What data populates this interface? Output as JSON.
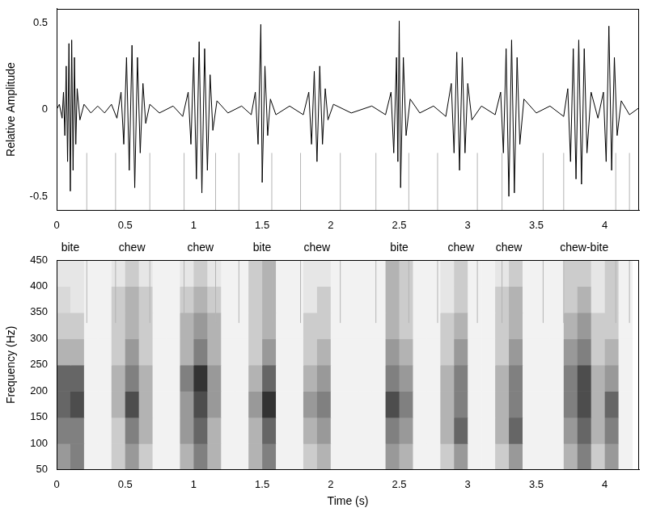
{
  "chart_data": [
    {
      "type": "line",
      "y_label": "Relative Amplitude",
      "color": "#000000",
      "grid": false,
      "xlim": [
        0,
        4.25
      ],
      "ylim": [
        -0.58,
        0.58
      ],
      "xticks": [
        0,
        0.5,
        1,
        1.5,
        2,
        2.5,
        3,
        3.5,
        4
      ],
      "yticks": [
        -0.5,
        0,
        0.5
      ],
      "x": [
        0,
        0.02,
        0.04,
        0.05,
        0.06,
        0.07,
        0.08,
        0.09,
        0.1,
        0.11,
        0.12,
        0.13,
        0.14,
        0.15,
        0.17,
        0.2,
        0.25,
        0.3,
        0.35,
        0.4,
        0.44,
        0.47,
        0.49,
        0.51,
        0.53,
        0.55,
        0.57,
        0.59,
        0.61,
        0.63,
        0.65,
        0.68,
        0.75,
        0.85,
        0.92,
        0.96,
        0.98,
        1.0,
        1.02,
        1.04,
        1.06,
        1.08,
        1.1,
        1.12,
        1.14,
        1.17,
        1.25,
        1.35,
        1.42,
        1.45,
        1.47,
        1.49,
        1.5,
        1.52,
        1.54,
        1.56,
        1.6,
        1.7,
        1.8,
        1.84,
        1.86,
        1.88,
        1.9,
        1.92,
        1.94,
        1.96,
        1.98,
        2.02,
        2.15,
        2.3,
        2.4,
        2.44,
        2.46,
        2.48,
        2.49,
        2.5,
        2.51,
        2.53,
        2.55,
        2.58,
        2.65,
        2.75,
        2.84,
        2.88,
        2.9,
        2.92,
        2.94,
        2.96,
        2.98,
        3.0,
        3.03,
        3.1,
        3.2,
        3.24,
        3.26,
        3.28,
        3.3,
        3.32,
        3.34,
        3.36,
        3.38,
        3.41,
        3.5,
        3.6,
        3.7,
        3.73,
        3.75,
        3.77,
        3.79,
        3.81,
        3.83,
        3.85,
        3.87,
        3.9,
        3.95,
        3.99,
        4.01,
        4.03,
        4.05,
        4.07,
        4.09,
        4.12,
        4.18,
        4.25
      ],
      "values": [
        0,
        0.03,
        -0.05,
        0.1,
        -0.15,
        0.25,
        -0.3,
        0.38,
        -0.47,
        0.4,
        -0.35,
        0.3,
        -0.2,
        0.12,
        -0.06,
        0.03,
        -0.02,
        0.02,
        -0.02,
        0.03,
        -0.05,
        0.1,
        -0.2,
        0.3,
        -0.35,
        0.37,
        -0.45,
        0.3,
        -0.25,
        0.15,
        -0.08,
        0.03,
        -0.02,
        0.02,
        -0.04,
        0.1,
        -0.2,
        0.3,
        -0.4,
        0.39,
        -0.48,
        0.35,
        -0.35,
        0.2,
        -0.12,
        0.05,
        -0.02,
        0.02,
        -0.03,
        0.1,
        -0.2,
        0.49,
        -0.42,
        0.25,
        -0.15,
        0.06,
        -0.03,
        0.02,
        -0.03,
        0.1,
        -0.2,
        0.22,
        -0.3,
        0.25,
        -0.2,
        0.12,
        -0.06,
        0.03,
        -0.02,
        0.02,
        -0.03,
        0.1,
        -0.25,
        0.3,
        -0.3,
        0.51,
        -0.45,
        0.3,
        -0.15,
        0.06,
        -0.02,
        0.02,
        -0.04,
        0.15,
        -0.25,
        0.33,
        -0.35,
        0.3,
        -0.25,
        0.15,
        -0.06,
        0.02,
        -0.03,
        0.1,
        -0.25,
        0.35,
        -0.5,
        0.4,
        -0.48,
        0.3,
        -0.2,
        0.06,
        -0.02,
        0.02,
        -0.04,
        0.12,
        -0.3,
        0.35,
        -0.4,
        0.4,
        -0.43,
        0.35,
        -0.25,
        0.1,
        -0.05,
        0.1,
        -0.3,
        0.48,
        -0.35,
        0.3,
        -0.15,
        0.05,
        -0.03,
        0.01
      ],
      "segment_marks": [
        0.0,
        0.22,
        0.43,
        0.68,
        0.93,
        1.16,
        1.33,
        1.57,
        1.78,
        2.07,
        2.33,
        2.57,
        2.78,
        3.07,
        3.25,
        3.55,
        3.7,
        4.08,
        4.18
      ],
      "segment_mark_span": [
        -0.58,
        -0.25
      ]
    },
    {
      "type": "heatmap",
      "x_label": "Time (s)",
      "y_label": "Frequency (Hz)",
      "color": "#000000",
      "grid": false,
      "xlim": [
        0,
        4.25
      ],
      "ylim": [
        50,
        450
      ],
      "xticks": [
        0,
        0.5,
        1,
        1.5,
        2,
        2.5,
        3,
        3.5,
        4
      ],
      "yticks": [
        50,
        100,
        150,
        200,
        250,
        300,
        350,
        400,
        450
      ],
      "annotations": [
        {
          "text": "bite",
          "x": 0.1
        },
        {
          "text": "chew",
          "x": 0.55
        },
        {
          "text": "chew",
          "x": 1.05
        },
        {
          "text": "bite",
          "x": 1.5
        },
        {
          "text": "chew",
          "x": 1.9
        },
        {
          "text": "bite",
          "x": 2.5
        },
        {
          "text": "chew",
          "x": 2.95
        },
        {
          "text": "chew",
          "x": 3.3
        },
        {
          "text": "chew-bite",
          "x": 3.85
        }
      ],
      "x_edges": [
        0,
        0.1,
        0.2,
        0.3,
        0.4,
        0.5,
        0.6,
        0.7,
        0.8,
        0.9,
        1.0,
        1.1,
        1.2,
        1.3,
        1.4,
        1.5,
        1.6,
        1.7,
        1.8,
        1.9,
        2.0,
        2.1,
        2.2,
        2.3,
        2.4,
        2.5,
        2.6,
        2.7,
        2.8,
        2.9,
        3.0,
        3.1,
        3.2,
        3.3,
        3.4,
        3.5,
        3.6,
        3.7,
        3.8,
        3.9,
        4.0,
        4.1,
        4.2
      ],
      "y_edges": [
        50,
        100,
        150,
        200,
        250,
        300,
        350,
        400,
        450
      ],
      "zlim": [
        0,
        1
      ],
      "cells": [
        [
          0.4,
          0.5,
          0.05,
          0.05,
          0.2,
          0.4,
          0.2,
          0.05,
          0.05,
          0.3,
          0.5,
          0.3,
          0.05,
          0.05,
          0.3,
          0.5,
          0.05,
          0.05,
          0.2,
          0.3,
          0.05,
          0.05,
          0.05,
          0.05,
          0.4,
          0.3,
          0.05,
          0.05,
          0.2,
          0.4,
          0.05,
          0.05,
          0.2,
          0.4,
          0.05,
          0.05,
          0.05,
          0.3,
          0.5,
          0.2,
          0.4,
          0.05
        ],
        [
          0.5,
          0.5,
          0.05,
          0.05,
          0.2,
          0.5,
          0.3,
          0.05,
          0.05,
          0.4,
          0.6,
          0.3,
          0.05,
          0.05,
          0.3,
          0.6,
          0.05,
          0.05,
          0.3,
          0.4,
          0.05,
          0.05,
          0.05,
          0.05,
          0.5,
          0.4,
          0.05,
          0.05,
          0.3,
          0.6,
          0.05,
          0.05,
          0.3,
          0.6,
          0.05,
          0.05,
          0.05,
          0.4,
          0.6,
          0.3,
          0.5,
          0.05
        ],
        [
          0.6,
          0.7,
          0.05,
          0.05,
          0.3,
          0.7,
          0.3,
          0.05,
          0.05,
          0.4,
          0.7,
          0.4,
          0.05,
          0.05,
          0.4,
          0.8,
          0.05,
          0.05,
          0.4,
          0.5,
          0.05,
          0.05,
          0.05,
          0.05,
          0.7,
          0.5,
          0.05,
          0.05,
          0.3,
          0.5,
          0.05,
          0.05,
          0.3,
          0.5,
          0.05,
          0.05,
          0.05,
          0.5,
          0.7,
          0.3,
          0.6,
          0.05
        ],
        [
          0.6,
          0.6,
          0.05,
          0.05,
          0.3,
          0.5,
          0.3,
          0.05,
          0.05,
          0.5,
          0.8,
          0.4,
          0.05,
          0.05,
          0.3,
          0.6,
          0.05,
          0.05,
          0.3,
          0.4,
          0.05,
          0.05,
          0.05,
          0.05,
          0.5,
          0.4,
          0.05,
          0.05,
          0.3,
          0.5,
          0.05,
          0.05,
          0.3,
          0.5,
          0.05,
          0.05,
          0.05,
          0.5,
          0.7,
          0.3,
          0.4,
          0.05
        ],
        [
          0.3,
          0.3,
          0.05,
          0.05,
          0.2,
          0.4,
          0.2,
          0.05,
          0.05,
          0.3,
          0.5,
          0.3,
          0.05,
          0.05,
          0.2,
          0.4,
          0.05,
          0.05,
          0.2,
          0.3,
          0.05,
          0.05,
          0.05,
          0.05,
          0.4,
          0.3,
          0.05,
          0.05,
          0.2,
          0.4,
          0.05,
          0.05,
          0.2,
          0.4,
          0.05,
          0.05,
          0.05,
          0.4,
          0.5,
          0.2,
          0.3,
          0.05
        ],
        [
          0.2,
          0.2,
          0.05,
          0.05,
          0.2,
          0.3,
          0.2,
          0.05,
          0.05,
          0.3,
          0.4,
          0.3,
          0.05,
          0.05,
          0.2,
          0.3,
          0.05,
          0.05,
          0.2,
          0.2,
          0.05,
          0.05,
          0.05,
          0.05,
          0.3,
          0.2,
          0.05,
          0.05,
          0.2,
          0.3,
          0.05,
          0.05,
          0.2,
          0.3,
          0.05,
          0.05,
          0.05,
          0.3,
          0.4,
          0.2,
          0.2,
          0.05
        ],
        [
          0.15,
          0.1,
          0.05,
          0.05,
          0.2,
          0.3,
          0.2,
          0.05,
          0.05,
          0.2,
          0.3,
          0.2,
          0.05,
          0.05,
          0.2,
          0.3,
          0.05,
          0.05,
          0.1,
          0.2,
          0.05,
          0.05,
          0.05,
          0.05,
          0.3,
          0.2,
          0.05,
          0.05,
          0.1,
          0.2,
          0.05,
          0.05,
          0.2,
          0.3,
          0.05,
          0.05,
          0.05,
          0.2,
          0.3,
          0.1,
          0.2,
          0.05
        ],
        [
          0.1,
          0.1,
          0.05,
          0.05,
          0.1,
          0.2,
          0.1,
          0.05,
          0.05,
          0.1,
          0.2,
          0.1,
          0.05,
          0.05,
          0.2,
          0.3,
          0.05,
          0.05,
          0.1,
          0.1,
          0.05,
          0.05,
          0.05,
          0.05,
          0.3,
          0.2,
          0.05,
          0.05,
          0.1,
          0.2,
          0.05,
          0.05,
          0.1,
          0.2,
          0.05,
          0.05,
          0.05,
          0.2,
          0.2,
          0.1,
          0.2,
          0.05
        ]
      ],
      "segment_marks": [
        0.0,
        0.22,
        0.43,
        0.68,
        0.93,
        1.16,
        1.33,
        1.57,
        1.78,
        2.07,
        2.33,
        2.57,
        2.78,
        3.07,
        3.25,
        3.55,
        3.7,
        4.08,
        4.18
      ],
      "segment_mark_span": [
        330,
        450
      ]
    }
  ]
}
